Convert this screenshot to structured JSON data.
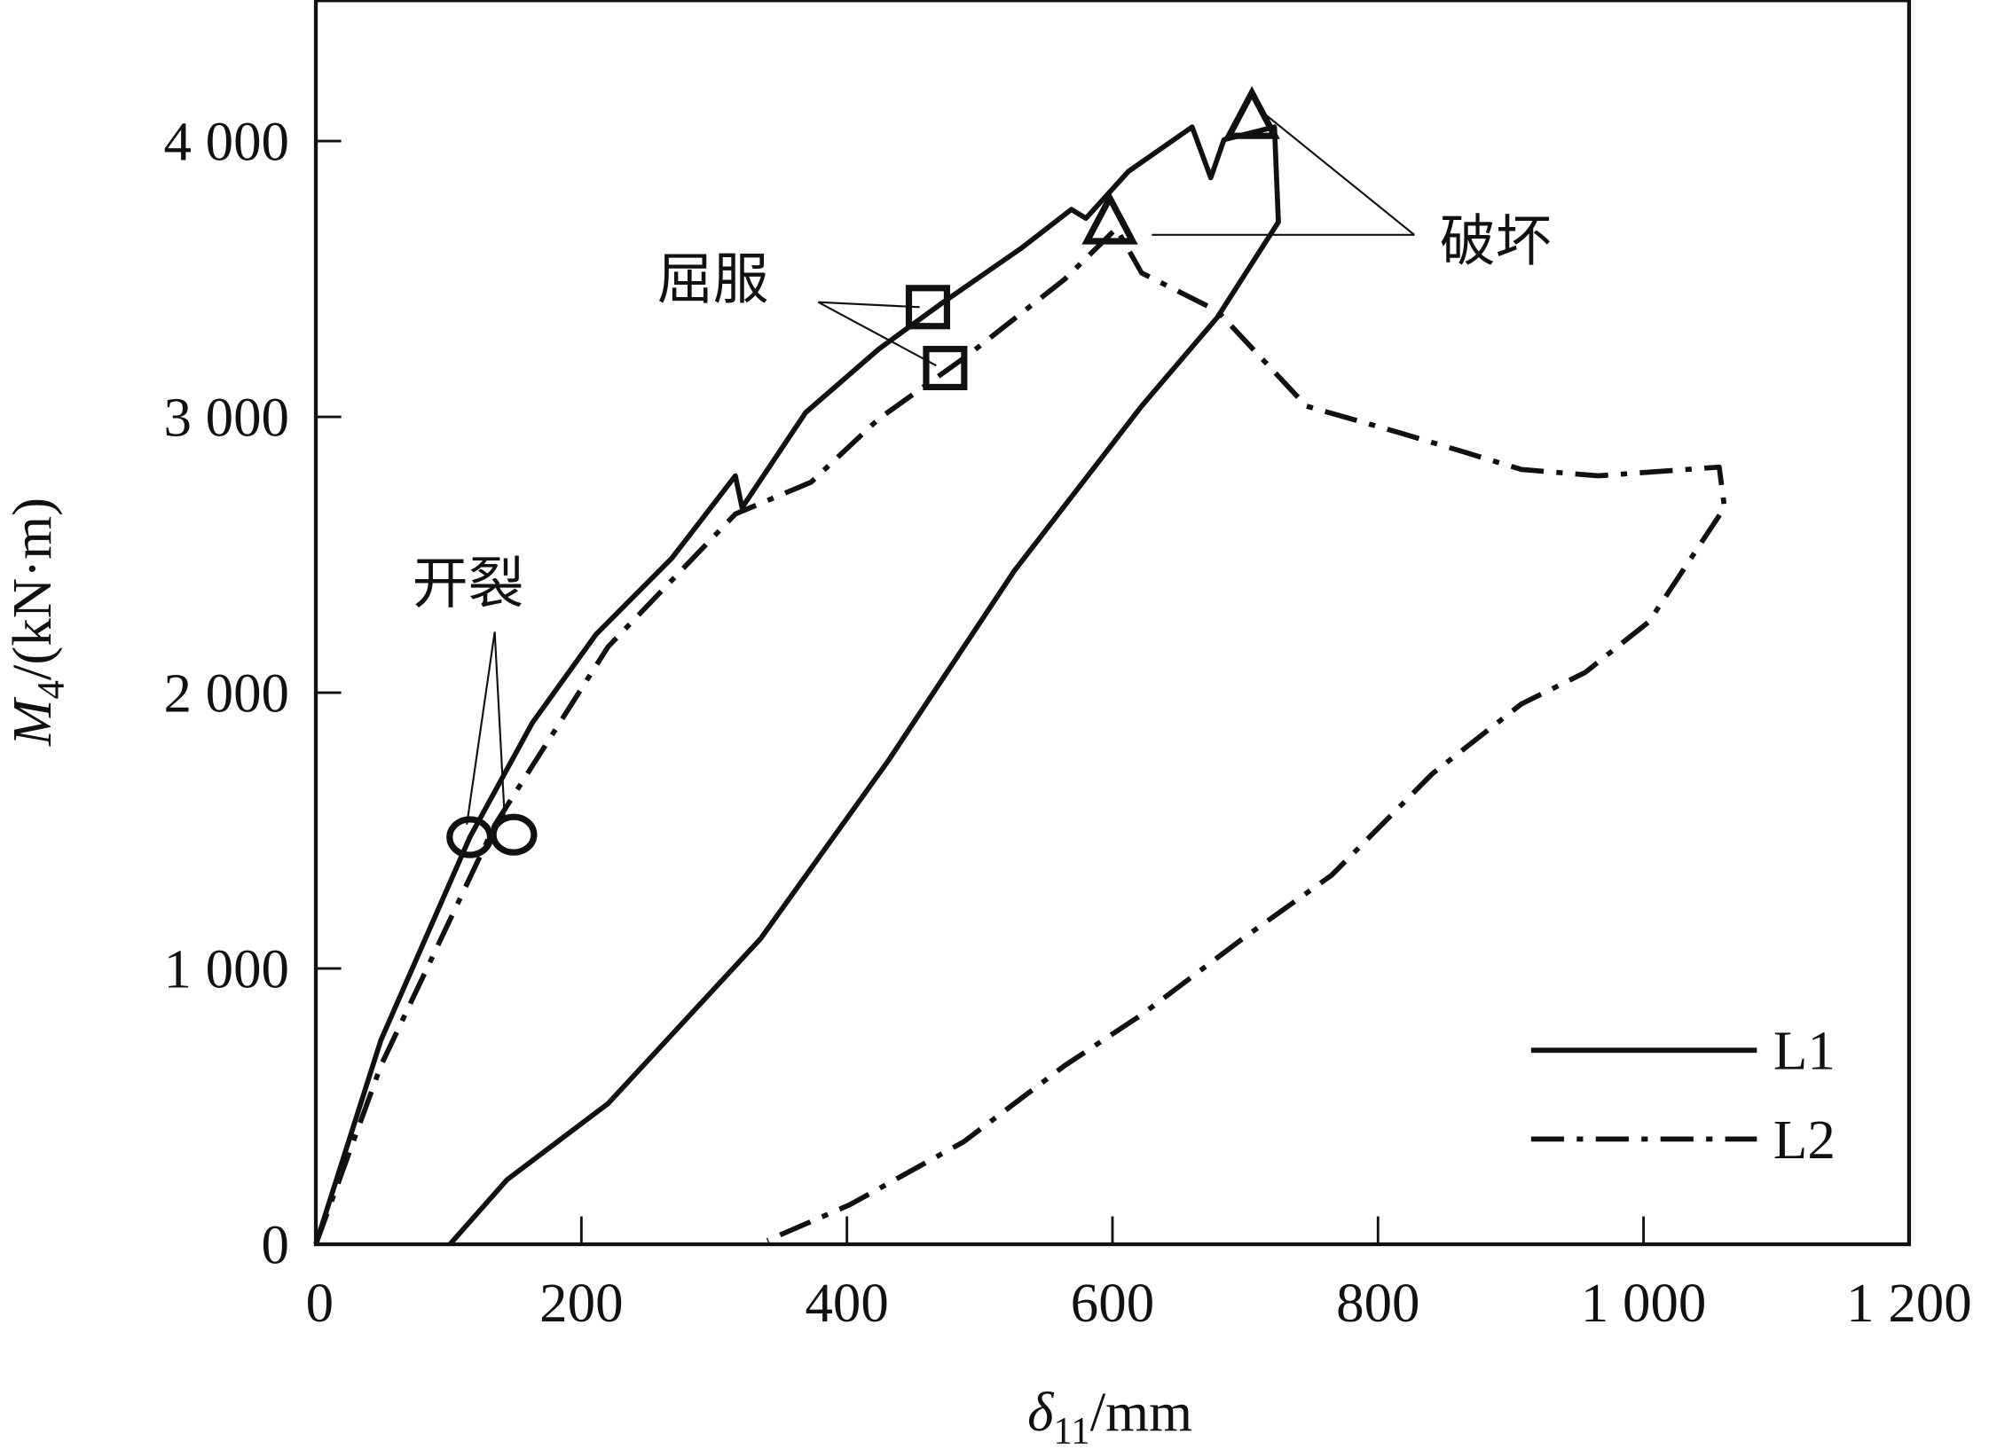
{
  "chart_data": {
    "type": "line",
    "xlabel": "δ11/mm",
    "ylabel": "M4/(kN·m)",
    "xlabel_main": "δ",
    "xlabel_sub": "11",
    "xlabel_unit": "/mm",
    "ylabel_main": "M",
    "ylabel_sub": "4",
    "ylabel_unit": "/(kN·m)",
    "xlim": [
      0,
      1200
    ],
    "ylim": [
      0,
      4500
    ],
    "xticks": [
      0,
      200,
      400,
      600,
      800,
      1000,
      1200
    ],
    "xtick_labels": [
      "0",
      "200",
      "400",
      "600",
      "800",
      "1 000",
      "1 200"
    ],
    "yticks": [
      0,
      1000,
      2000,
      3000,
      4000
    ],
    "ytick_labels": [
      "0",
      "1 000",
      "2 000",
      "3 000",
      "4 000"
    ],
    "grid": false,
    "legend": {
      "placement": "bottom-right",
      "entries": [
        "L1",
        "L2"
      ]
    },
    "series": [
      {
        "name": "L1",
        "style": "solid",
        "points": [
          [
            0,
            0
          ],
          [
            49,
            740
          ],
          [
            116,
            1476
          ],
          [
            163,
            1890
          ],
          [
            211,
            2211
          ],
          [
            268,
            2487
          ],
          [
            316,
            2786
          ],
          [
            321,
            2671
          ],
          [
            369,
            3016
          ],
          [
            424,
            3246
          ],
          [
            470,
            3407
          ],
          [
            532,
            3614
          ],
          [
            569,
            3752
          ],
          [
            580,
            3720
          ],
          [
            612,
            3890
          ],
          [
            660,
            4051
          ],
          [
            674,
            3867
          ],
          [
            684,
            4005
          ],
          [
            722,
            4051
          ],
          [
            725,
            3706
          ],
          [
            679,
            3361
          ],
          [
            622,
            3039
          ],
          [
            526,
            2441
          ],
          [
            431,
            1752
          ],
          [
            335,
            1108
          ],
          [
            220,
            510
          ],
          [
            144,
            234
          ],
          [
            101,
            0
          ]
        ]
      },
      {
        "name": "L2",
        "style": "dash-dot",
        "points": [
          [
            0,
            0
          ],
          [
            49,
            648
          ],
          [
            135,
            1522
          ],
          [
            220,
            2166
          ],
          [
            316,
            2648
          ],
          [
            373,
            2763
          ],
          [
            424,
            2993
          ],
          [
            491,
            3223
          ],
          [
            564,
            3499
          ],
          [
            603,
            3683
          ],
          [
            622,
            3522
          ],
          [
            679,
            3384
          ],
          [
            746,
            3039
          ],
          [
            813,
            2947
          ],
          [
            861,
            2878
          ],
          [
            908,
            2809
          ],
          [
            966,
            2786
          ],
          [
            1057,
            2818
          ],
          [
            1061,
            2671
          ],
          [
            1004,
            2257
          ],
          [
            956,
            2073
          ],
          [
            908,
            1959
          ],
          [
            841,
            1706
          ],
          [
            765,
            1338
          ],
          [
            698,
            1108
          ],
          [
            622,
            832
          ],
          [
            564,
            648
          ],
          [
            488,
            372
          ],
          [
            402,
            143
          ],
          [
            340,
            14
          ]
        ]
      }
    ],
    "markers": [
      {
        "shape": "circle",
        "series": "L1",
        "x": 116,
        "y": 1476
      },
      {
        "shape": "circle",
        "series": "L2",
        "x": 149,
        "y": 1485
      },
      {
        "shape": "square",
        "series": "L1",
        "x": 461,
        "y": 3398
      },
      {
        "shape": "square",
        "series": "L2",
        "x": 474,
        "y": 3177
      },
      {
        "shape": "triangle",
        "series": "L1",
        "x": 705,
        "y": 4074
      },
      {
        "shape": "triangle",
        "series": "L2",
        "x": 598,
        "y": 3692
      }
    ],
    "annotations": [
      {
        "text": "开裂",
        "targets": "circle"
      },
      {
        "text": "屈服",
        "targets": "square"
      },
      {
        "text": "破坏",
        "targets": "triangle"
      }
    ]
  }
}
